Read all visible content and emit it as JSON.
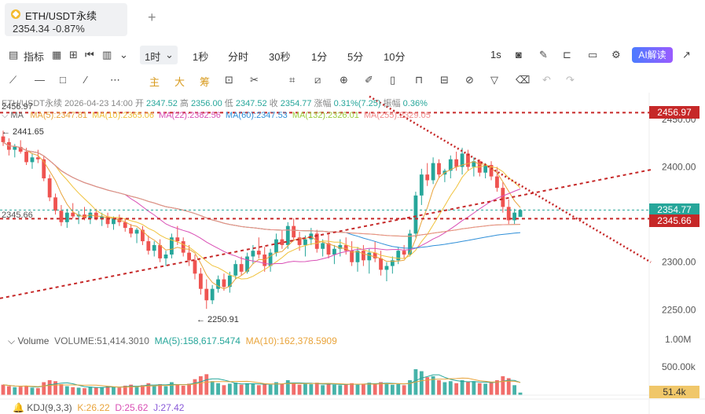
{
  "tab": {
    "symbol": "ETH/USDT永续",
    "price": "2354.34",
    "change": "-0.87%",
    "plus": "+"
  },
  "toolbar": {
    "indicators_label": "指标",
    "interval_selected": "1时",
    "intervals": [
      "1秒",
      "分时",
      "30秒",
      "1分",
      "5分",
      "10分"
    ],
    "right_interval": "1s",
    "ai_label": "AI解读"
  },
  "drawbar": {
    "zhu": "主",
    "da": "大",
    "chou": "筹"
  },
  "ohlc": {
    "symbol": "ETH/USDT永续",
    "datetime": "2026-04-23 14:00",
    "open_label": "开",
    "open": "2347.52",
    "high_label": "高",
    "high": "2356.00",
    "low_label": "低",
    "low": "2347.52",
    "close_label": "收",
    "close": "2354.77",
    "change_label": "涨幅",
    "change": "0.31%(7.25)",
    "amp_label": "振幅",
    "amp": "0.36%"
  },
  "ma_legend": [
    {
      "text": "MA(5):2347.81",
      "color": "#e9a43b"
    },
    {
      "text": "MA(10):2365.06",
      "color": "#f0c23b"
    },
    {
      "text": "MA(22):2382.56",
      "color": "#d94fb5"
    },
    {
      "text": "MA(60):2347.53",
      "color": "#2f8fd8"
    },
    {
      "text": "MA(132):2326.01",
      "color": "#9ccc3c"
    },
    {
      "text": "MA(255):2329.05",
      "color": "#f08a8a"
    }
  ],
  "ma_prefix": "MA",
  "volume": {
    "prefix": "Volume",
    "main": "VOLUME:51,414.3010",
    "ma5": "MA(5):158,617.5474",
    "ma10": "MA(10):162,378.5909",
    "axis_labels": [
      "1.00M",
      "500.00k"
    ],
    "current_label": "51.4k"
  },
  "kdj": {
    "name": "KDJ(9,3,3)",
    "k": "K:26.22",
    "d": "D:25.62",
    "j": "J:27.42"
  },
  "price_annotations": {
    "left_top": "2456.97",
    "high_marker": "← 2441.65",
    "low_marker": "← 2250.91",
    "left_mid": "2345.66"
  },
  "price_tags": [
    {
      "value": "2456.97",
      "color": "#c62828"
    },
    {
      "value": "2354.77",
      "color": "#26a69a"
    },
    {
      "value": "2345.66",
      "color": "#c62828"
    }
  ],
  "chart_data": {
    "type": "candlestick",
    "interval": "1h",
    "y_ticks": [
      2450,
      2400,
      2350,
      2300,
      2250
    ],
    "y_tick_labels": [
      "2450.00",
      "2400.00",
      "2350.00",
      "2300.00",
      "2250.00"
    ],
    "ylim": [
      2233,
      2468
    ],
    "candles_ohlc_approx": [
      [
        2432,
        2438,
        2422,
        2426
      ],
      [
        2426,
        2430,
        2412,
        2418
      ],
      [
        2418,
        2424,
        2410,
        2421
      ],
      [
        2421,
        2428,
        2414,
        2416
      ],
      [
        2416,
        2420,
        2402,
        2405
      ],
      [
        2405,
        2414,
        2398,
        2410
      ],
      [
        2410,
        2418,
        2404,
        2408
      ],
      [
        2408,
        2412,
        2385,
        2388
      ],
      [
        2388,
        2392,
        2364,
        2368
      ],
      [
        2368,
        2372,
        2350,
        2354
      ],
      [
        2354,
        2360,
        2338,
        2342
      ],
      [
        2342,
        2356,
        2336,
        2352
      ],
      [
        2352,
        2362,
        2346,
        2348
      ],
      [
        2348,
        2354,
        2340,
        2350
      ],
      [
        2350,
        2358,
        2344,
        2346
      ],
      [
        2346,
        2356,
        2340,
        2352
      ],
      [
        2352,
        2356,
        2344,
        2345
      ],
      [
        2345,
        2352,
        2338,
        2348
      ],
      [
        2348,
        2352,
        2336,
        2340
      ],
      [
        2340,
        2348,
        2334,
        2346
      ],
      [
        2346,
        2350,
        2338,
        2342
      ],
      [
        2342,
        2346,
        2332,
        2336
      ],
      [
        2336,
        2340,
        2326,
        2330
      ],
      [
        2330,
        2336,
        2320,
        2334
      ],
      [
        2334,
        2338,
        2318,
        2322
      ],
      [
        2322,
        2328,
        2308,
        2312
      ],
      [
        2312,
        2322,
        2306,
        2318
      ],
      [
        2318,
        2324,
        2300,
        2304
      ],
      [
        2304,
        2312,
        2296,
        2308
      ],
      [
        2308,
        2330,
        2304,
        2326
      ],
      [
        2326,
        2338,
        2318,
        2322
      ],
      [
        2322,
        2326,
        2306,
        2310
      ],
      [
        2310,
        2318,
        2296,
        2302
      ],
      [
        2302,
        2308,
        2282,
        2288
      ],
      [
        2288,
        2294,
        2266,
        2272
      ],
      [
        2272,
        2282,
        2251,
        2260
      ],
      [
        2260,
        2276,
        2256,
        2272
      ],
      [
        2272,
        2286,
        2268,
        2282
      ],
      [
        2282,
        2288,
        2270,
        2274
      ],
      [
        2274,
        2290,
        2268,
        2286
      ],
      [
        2286,
        2302,
        2282,
        2298
      ],
      [
        2298,
        2306,
        2286,
        2290
      ],
      [
        2290,
        2310,
        2288,
        2306
      ],
      [
        2306,
        2318,
        2298,
        2312
      ],
      [
        2312,
        2326,
        2304,
        2308
      ],
      [
        2308,
        2316,
        2290,
        2296
      ],
      [
        2296,
        2314,
        2290,
        2310
      ],
      [
        2310,
        2330,
        2306,
        2324
      ],
      [
        2324,
        2334,
        2314,
        2318
      ],
      [
        2318,
        2342,
        2314,
        2338
      ],
      [
        2338,
        2346,
        2322,
        2326
      ],
      [
        2326,
        2332,
        2312,
        2318
      ],
      [
        2318,
        2328,
        2306,
        2324
      ],
      [
        2324,
        2336,
        2318,
        2330
      ],
      [
        2330,
        2334,
        2310,
        2314
      ],
      [
        2314,
        2324,
        2306,
        2320
      ],
      [
        2320,
        2330,
        2304,
        2308
      ],
      [
        2308,
        2318,
        2298,
        2314
      ],
      [
        2314,
        2324,
        2306,
        2318
      ],
      [
        2318,
        2326,
        2308,
        2312
      ],
      [
        2312,
        2322,
        2296,
        2300
      ],
      [
        2300,
        2316,
        2290,
        2312
      ],
      [
        2312,
        2318,
        2296,
        2302
      ],
      [
        2302,
        2314,
        2288,
        2310
      ],
      [
        2310,
        2322,
        2300,
        2304
      ],
      [
        2304,
        2312,
        2286,
        2292
      ],
      [
        2292,
        2300,
        2280,
        2296
      ],
      [
        2296,
        2306,
        2288,
        2302
      ],
      [
        2302,
        2316,
        2298,
        2312
      ],
      [
        2312,
        2318,
        2304,
        2308
      ],
      [
        2308,
        2334,
        2306,
        2330
      ],
      [
        2330,
        2374,
        2326,
        2370
      ],
      [
        2370,
        2398,
        2360,
        2392
      ],
      [
        2392,
        2404,
        2380,
        2386
      ],
      [
        2386,
        2410,
        2382,
        2404
      ],
      [
        2404,
        2408,
        2388,
        2392
      ],
      [
        2392,
        2398,
        2384,
        2396
      ],
      [
        2396,
        2412,
        2388,
        2408
      ],
      [
        2408,
        2416,
        2396,
        2400
      ],
      [
        2400,
        2420,
        2392,
        2414
      ],
      [
        2414,
        2418,
        2396,
        2400
      ],
      [
        2400,
        2410,
        2390,
        2406
      ],
      [
        2406,
        2408,
        2390,
        2394
      ],
      [
        2394,
        2404,
        2388,
        2402
      ],
      [
        2402,
        2406,
        2386,
        2390
      ],
      [
        2390,
        2400,
        2374,
        2378
      ],
      [
        2378,
        2384,
        2352,
        2358
      ],
      [
        2358,
        2366,
        2340,
        2344
      ],
      [
        2344,
        2356,
        2340,
        2352
      ],
      [
        2347.52,
        2356,
        2347.52,
        2354.77
      ]
    ],
    "volume_approx_k": [
      210,
      180,
      160,
      170,
      190,
      150,
      140,
      260,
      300,
      280,
      220,
      180,
      160,
      150,
      140,
      170,
      150,
      160,
      180,
      170,
      150,
      190,
      210,
      180,
      200,
      240,
      190,
      220,
      180,
      260,
      210,
      190,
      230,
      320,
      380,
      420,
      280,
      240,
      200,
      230,
      250,
      210,
      240,
      220,
      200,
      230,
      210,
      260,
      220,
      300,
      240,
      210,
      230,
      220,
      250,
      200,
      230,
      210,
      200,
      220,
      240,
      210,
      230,
      250,
      220,
      260,
      240,
      210,
      220,
      200,
      300,
      520,
      480,
      360,
      380,
      300,
      260,
      280,
      240,
      300,
      260,
      280,
      240,
      230,
      250,
      300,
      380,
      340,
      200,
      51.4
    ],
    "volume_yticks": [
      1000,
      500
    ],
    "volume_ylim": [
      0,
      1150
    ]
  }
}
